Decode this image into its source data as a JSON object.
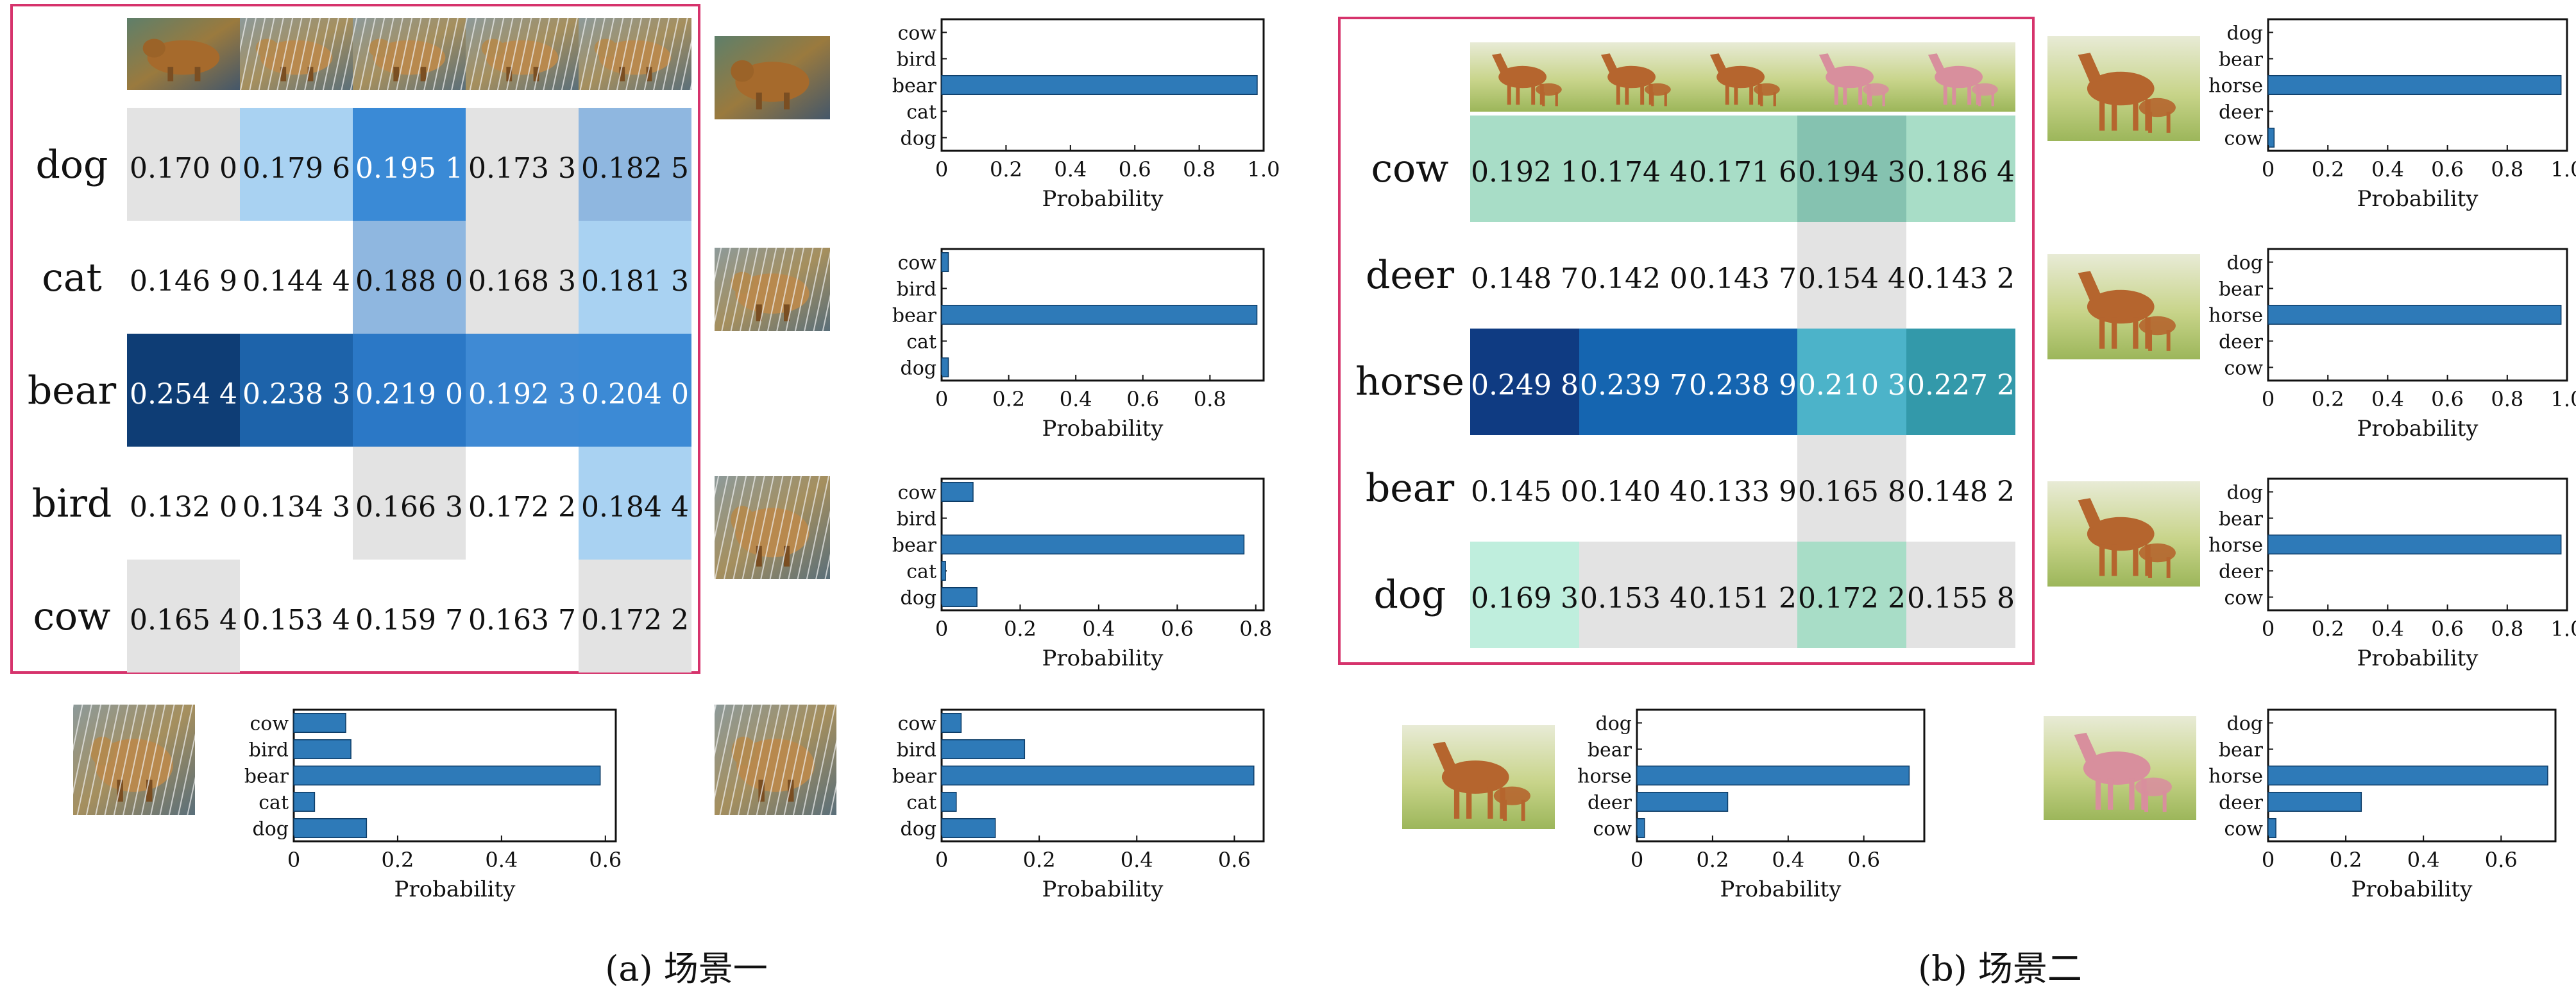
{
  "panels": [
    {
      "caption": "(a) 场景一",
      "image_theme": "bear",
      "rows": [
        "dog",
        "cat",
        "bear",
        "bird",
        "cow"
      ],
      "table": [
        [
          "0.170 0",
          "0.179 6",
          "0.195 1",
          "0.173 3",
          "0.182 5"
        ],
        [
          "0.146 9",
          "0.144 4",
          "0.188 0",
          "0.168 3",
          "0.181 3"
        ],
        [
          "0.254 4",
          "0.238 3",
          "0.219 0",
          "0.192 3",
          "0.204 0"
        ],
        [
          "0.132 0",
          "0.134 3",
          "0.166 3",
          "0.172 2",
          "0.184 4"
        ],
        [
          "0.165 4",
          "0.153 4",
          "0.159 7",
          "0.163 7",
          "0.172 2"
        ]
      ],
      "colors": {
        "grey": "#e3e3e3",
        "light": "#a9d2f2",
        "mid": "#8fb7e0",
        "strong": "#3a8ad6",
        "dark": "#0e3d75",
        "border": "#d6336c"
      }
    },
    {
      "caption": "(b) 场景二",
      "image_theme": "horse",
      "rows": [
        "cow",
        "deer",
        "horse",
        "bear",
        "dog"
      ],
      "table": [
        [
          "0.192 1",
          "0.174 4",
          "0.171 6",
          "0.194 3",
          "0.186 4"
        ],
        [
          "0.148 7",
          "0.142 0",
          "0.143 7",
          "0.154 4",
          "0.143 2"
        ],
        [
          "0.249 8",
          "0.239 7",
          "0.238 9",
          "0.210 3",
          "0.227 2"
        ],
        [
          "0.145 0",
          "0.140 4",
          "0.133 9",
          "0.165 8",
          "0.148 2"
        ],
        [
          "0.169 3",
          "0.153 4",
          "0.151 2",
          "0.172 2",
          "0.155 8"
        ]
      ],
      "colors": {
        "grey": "#e3e3e3",
        "teal_light": "#a8ddc7",
        "teal_mid": "#85c2b0",
        "teal": "#4cb3c9",
        "navy": "#0f3b82",
        "blue": "#1565b0",
        "border": "#d6336c"
      }
    }
  ],
  "chart_data": [
    {
      "type": "bar",
      "orientation": "horizontal",
      "panel": "a",
      "categories": [
        "dog",
        "cat",
        "bear",
        "bird",
        "cow"
      ],
      "values": [
        0.0,
        0.0,
        0.98,
        0.0,
        0.0
      ],
      "xlabel": "Probability",
      "xlim": [
        0,
        1.0
      ],
      "xticks": [
        "0",
        "0.2",
        "0.4",
        "0.6",
        "0.8",
        "1.0"
      ],
      "bar_color": "#2e7ab8"
    },
    {
      "type": "bar",
      "orientation": "horizontal",
      "panel": "a",
      "categories": [
        "dog",
        "cat",
        "bear",
        "bird",
        "cow"
      ],
      "values": [
        0.02,
        0.0,
        0.94,
        0.0,
        0.02
      ],
      "xlabel": "Probability",
      "xlim": [
        0,
        0.96
      ],
      "xticks": [
        "0",
        "0.2",
        "0.4",
        "0.6",
        "0.8"
      ],
      "bar_color": "#2e7ab8"
    },
    {
      "type": "bar",
      "orientation": "horizontal",
      "panel": "a",
      "categories": [
        "dog",
        "cat",
        "bear",
        "bird",
        "cow"
      ],
      "values": [
        0.09,
        0.01,
        0.77,
        0.0,
        0.08
      ],
      "xlabel": "Probability",
      "xlim": [
        0,
        0.82
      ],
      "xticks": [
        "0",
        "0.2",
        "0.4",
        "0.6",
        "0.8"
      ],
      "bar_color": "#2e7ab8"
    },
    {
      "type": "bar",
      "orientation": "horizontal",
      "panel": "a",
      "categories": [
        "dog",
        "cat",
        "bear",
        "bird",
        "cow"
      ],
      "values": [
        0.14,
        0.04,
        0.59,
        0.11,
        0.1
      ],
      "xlabel": "Probability",
      "xlim": [
        0,
        0.62
      ],
      "xticks": [
        "0",
        "0.2",
        "0.4",
        "0.6"
      ],
      "bar_color": "#2e7ab8"
    },
    {
      "type": "bar",
      "orientation": "horizontal",
      "panel": "a",
      "categories": [
        "dog",
        "cat",
        "bear",
        "bird",
        "cow"
      ],
      "values": [
        0.11,
        0.03,
        0.64,
        0.17,
        0.04
      ],
      "xlabel": "Probability",
      "xlim": [
        0,
        0.66
      ],
      "xticks": [
        "0",
        "0.2",
        "0.4",
        "0.6"
      ],
      "bar_color": "#2e7ab8"
    },
    {
      "type": "bar",
      "orientation": "horizontal",
      "panel": "b",
      "categories": [
        "cow",
        "deer",
        "horse",
        "bear",
        "dog"
      ],
      "values": [
        0.02,
        0.0,
        0.98,
        0.0,
        0.0
      ],
      "xlabel": "Probability",
      "xlim": [
        0,
        1.0
      ],
      "xticks": [
        "0",
        "0.2",
        "0.4",
        "0.6",
        "0.8",
        "1.0"
      ],
      "bar_color": "#2e7ab8"
    },
    {
      "type": "bar",
      "orientation": "horizontal",
      "panel": "b",
      "categories": [
        "cow",
        "deer",
        "horse",
        "bear",
        "dog"
      ],
      "values": [
        0.0,
        0.0,
        0.98,
        0.0,
        0.0
      ],
      "xlabel": "Probability",
      "xlim": [
        0,
        1.0
      ],
      "xticks": [
        "0",
        "0.2",
        "0.4",
        "0.6",
        "0.8",
        "1.0"
      ],
      "bar_color": "#2e7ab8"
    },
    {
      "type": "bar",
      "orientation": "horizontal",
      "panel": "b",
      "categories": [
        "cow",
        "deer",
        "horse",
        "bear",
        "dog"
      ],
      "values": [
        0.0,
        0.0,
        0.98,
        0.0,
        0.0
      ],
      "xlabel": "Probability",
      "xlim": [
        0,
        1.0
      ],
      "xticks": [
        "0",
        "0.2",
        "0.4",
        "0.6",
        "0.8",
        "1.0"
      ],
      "bar_color": "#2e7ab8"
    },
    {
      "type": "bar",
      "orientation": "horizontal",
      "panel": "b",
      "categories": [
        "cow",
        "deer",
        "horse",
        "bear",
        "dog"
      ],
      "values": [
        0.02,
        0.24,
        0.72,
        0.0,
        0.0
      ],
      "xlabel": "Probability",
      "xlim": [
        0,
        0.76
      ],
      "xticks": [
        "0",
        "0.2",
        "0.4",
        "0.6"
      ],
      "bar_color": "#2e7ab8"
    },
    {
      "type": "bar",
      "orientation": "horizontal",
      "panel": "b",
      "categories": [
        "cow",
        "deer",
        "horse",
        "bear",
        "dog"
      ],
      "values": [
        0.02,
        0.24,
        0.72,
        0.0,
        0.0
      ],
      "xlabel": "Probability",
      "xlim": [
        0,
        0.74
      ],
      "xticks": [
        "0",
        "0.2",
        "0.4",
        "0.6"
      ],
      "bar_color": "#2e7ab8"
    }
  ]
}
